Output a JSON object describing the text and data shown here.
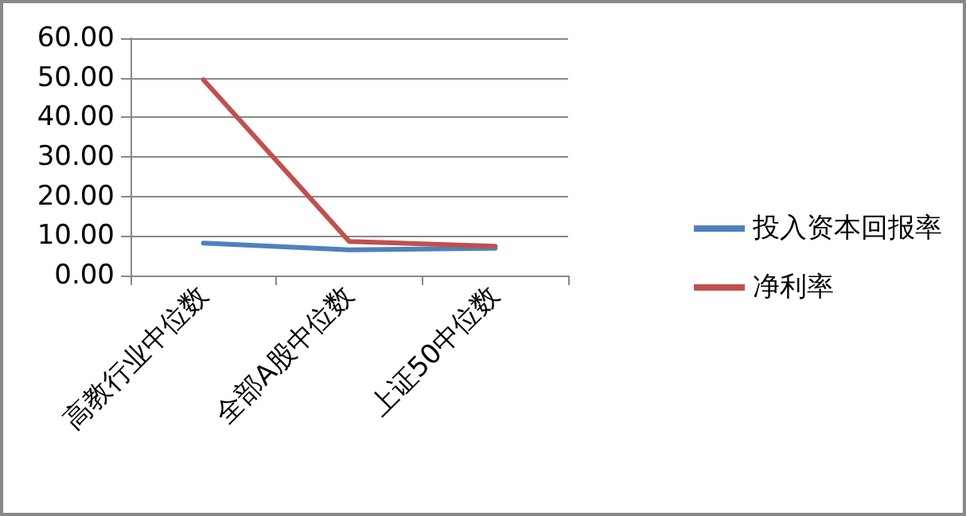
{
  "chart_data": {
    "type": "line",
    "categories": [
      "高教行业中位数",
      "全部A股中位数",
      "上证50中位数"
    ],
    "series": [
      {
        "name": "投入资本回报率",
        "color": "#4f81bd",
        "values": [
          8.2,
          6.5,
          6.9
        ]
      },
      {
        "name": "净利率",
        "color": "#c0504d",
        "values": [
          49.5,
          8.6,
          7.4
        ]
      }
    ],
    "ylim": [
      0,
      60
    ],
    "yticks": [
      {
        "value": 0,
        "label": "0.00"
      },
      {
        "value": 10,
        "label": "10.00"
      },
      {
        "value": 20,
        "label": "20.00"
      },
      {
        "value": 30,
        "label": "30.00"
      },
      {
        "value": 40,
        "label": "40.00"
      },
      {
        "value": 50,
        "label": "50.00"
      },
      {
        "value": 60,
        "label": "60.00"
      }
    ],
    "grid": "y",
    "legend": "right",
    "marker": "none",
    "line_style": "solid"
  }
}
